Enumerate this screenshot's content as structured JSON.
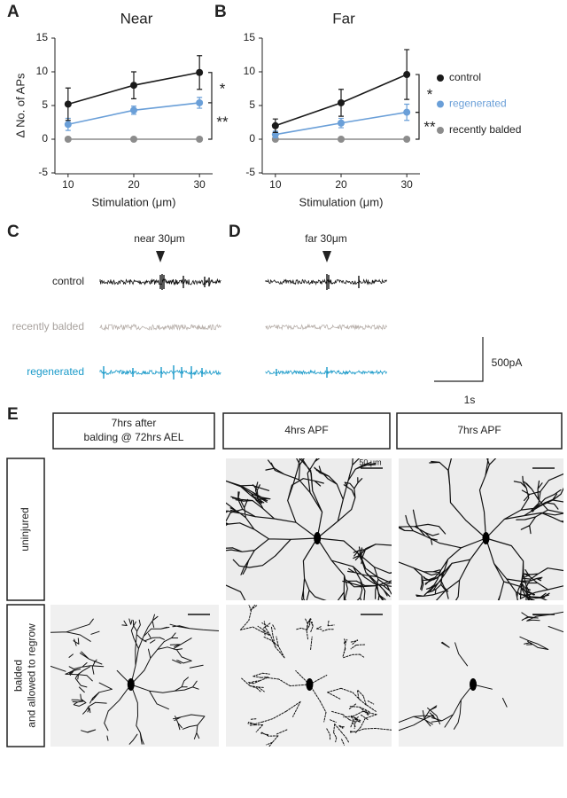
{
  "chart_data": [
    {
      "type": "line",
      "panel": "A",
      "title": "Near",
      "xlabel": "Stimulation (μm)",
      "ylabel": "Δ No. of APs",
      "x": [
        10,
        20,
        30
      ],
      "xlim": [
        8,
        32
      ],
      "xticks": [
        10,
        20,
        30
      ],
      "ylim": [
        -5,
        15
      ],
      "yticks": [
        -5,
        0,
        5,
        10,
        15
      ],
      "series": [
        {
          "name": "control",
          "color": "#1a1a1a",
          "values": [
            5.2,
            8.0,
            9.9
          ],
          "errors": [
            2.4,
            2.0,
            2.5
          ]
        },
        {
          "name": "regenerated",
          "color": "#6a9fd8",
          "values": [
            2.2,
            4.3,
            5.4
          ],
          "errors": [
            0.9,
            0.6,
            0.8
          ]
        },
        {
          "name": "recently balded",
          "color": "#8c8c8c",
          "values": [
            0,
            0,
            0
          ],
          "errors": [
            0,
            0,
            0
          ]
        }
      ],
      "annotations": [
        "*",
        "**"
      ]
    },
    {
      "type": "line",
      "panel": "B",
      "title": "Far",
      "xlabel": "Stimulation (μm)",
      "x": [
        10,
        20,
        30
      ],
      "xlim": [
        8,
        32
      ],
      "xticks": [
        10,
        20,
        30
      ],
      "ylim": [
        -5,
        15
      ],
      "yticks": [
        -5,
        0,
        5,
        10,
        15
      ],
      "series": [
        {
          "name": "control",
          "color": "#1a1a1a",
          "values": [
            2.0,
            5.4,
            9.6
          ],
          "errors": [
            1.0,
            2.0,
            3.7
          ]
        },
        {
          "name": "regenerated",
          "color": "#6a9fd8",
          "values": [
            0.7,
            2.4,
            4.0
          ],
          "errors": [
            0.5,
            0.7,
            1.2
          ]
        },
        {
          "name": "recently balded",
          "color": "#8c8c8c",
          "values": [
            0,
            0,
            0
          ],
          "errors": [
            0,
            0,
            0
          ]
        }
      ],
      "annotations": [
        "*",
        "**"
      ]
    }
  ],
  "traces": {
    "panel_c": "C",
    "panel_d": "D",
    "near_label": "near 30μm",
    "far_label": "far 30μm",
    "rows": [
      "control",
      "recently balded",
      "regenerated"
    ],
    "scale_y": "500pA",
    "scale_x": "1s"
  },
  "images": {
    "panel": "E",
    "columns": [
      [
        "7hrs after",
        "balding @ 72hrs AEL"
      ],
      [
        "4hrs APF"
      ],
      [
        "7hrs APF"
      ]
    ],
    "rows": [
      [
        "uninjured"
      ],
      [
        "balded",
        "and allowed to regrow"
      ]
    ],
    "scale": "50 μm"
  }
}
